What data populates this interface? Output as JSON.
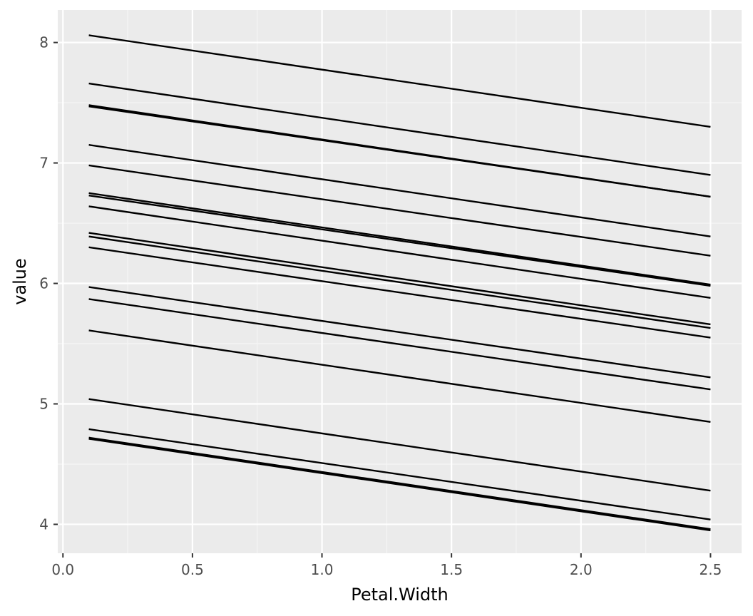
{
  "chart_data": {
    "type": "line",
    "title": "",
    "xlabel": "Petal.Width",
    "ylabel": "value",
    "xlim": [
      -0.02,
      2.62
    ],
    "ylim": [
      3.76,
      8.27
    ],
    "x_ticks": [
      0.0,
      0.5,
      1.0,
      1.5,
      2.0,
      2.5
    ],
    "x_tick_labels": [
      "0.0",
      "0.5",
      "1.0",
      "1.5",
      "2.0",
      "2.5"
    ],
    "y_ticks": [
      4,
      5,
      6,
      7,
      8
    ],
    "y_tick_labels": [
      "4",
      "5",
      "6",
      "7",
      "8"
    ],
    "grid": true,
    "legend": "none",
    "colors": {
      "panel_bg": "#EBEBEB",
      "grid_major": "#FFFFFF",
      "grid_minor": "#F5F5F5",
      "line": "#000000",
      "tick": "#333333"
    },
    "series": [
      {
        "name": "line-1",
        "x": [
          0.1,
          2.5
        ],
        "values": [
          8.06,
          7.3
        ]
      },
      {
        "name": "line-2",
        "x": [
          0.1,
          2.5
        ],
        "values": [
          7.66,
          6.9
        ]
      },
      {
        "name": "line-3",
        "x": [
          0.1,
          2.5
        ],
        "values": [
          7.48,
          6.72
        ]
      },
      {
        "name": "line-4",
        "x": [
          0.1,
          2.5
        ],
        "values": [
          7.47,
          6.72
        ]
      },
      {
        "name": "line-5",
        "x": [
          0.1,
          2.5
        ],
        "values": [
          7.15,
          6.39
        ]
      },
      {
        "name": "line-6",
        "x": [
          0.1,
          2.5
        ],
        "values": [
          6.98,
          6.23
        ]
      },
      {
        "name": "line-7",
        "x": [
          0.1,
          2.5
        ],
        "values": [
          6.75,
          5.99
        ]
      },
      {
        "name": "line-8",
        "x": [
          0.1,
          2.5
        ],
        "values": [
          6.73,
          5.98
        ]
      },
      {
        "name": "line-9",
        "x": [
          0.1,
          2.5
        ],
        "values": [
          6.64,
          5.88
        ]
      },
      {
        "name": "line-10",
        "x": [
          0.1,
          2.5
        ],
        "values": [
          6.42,
          5.66
        ]
      },
      {
        "name": "line-11",
        "x": [
          0.1,
          2.5
        ],
        "values": [
          6.39,
          5.63
        ]
      },
      {
        "name": "line-12",
        "x": [
          0.1,
          2.5
        ],
        "values": [
          6.3,
          5.55
        ]
      },
      {
        "name": "line-13",
        "x": [
          0.1,
          2.5
        ],
        "values": [
          5.97,
          5.22
        ]
      },
      {
        "name": "line-14",
        "x": [
          0.1,
          2.5
        ],
        "values": [
          5.87,
          5.12
        ]
      },
      {
        "name": "line-15",
        "x": [
          0.1,
          2.5
        ],
        "values": [
          5.61,
          4.85
        ]
      },
      {
        "name": "line-16",
        "x": [
          0.1,
          2.5
        ],
        "values": [
          5.04,
          4.28
        ]
      },
      {
        "name": "line-17",
        "x": [
          0.1,
          2.5
        ],
        "values": [
          4.79,
          4.04
        ]
      },
      {
        "name": "line-18",
        "x": [
          0.1,
          2.5
        ],
        "values": [
          4.72,
          3.96
        ]
      },
      {
        "name": "line-19",
        "x": [
          0.1,
          2.5
        ],
        "values": [
          4.71,
          3.95
        ]
      }
    ]
  }
}
